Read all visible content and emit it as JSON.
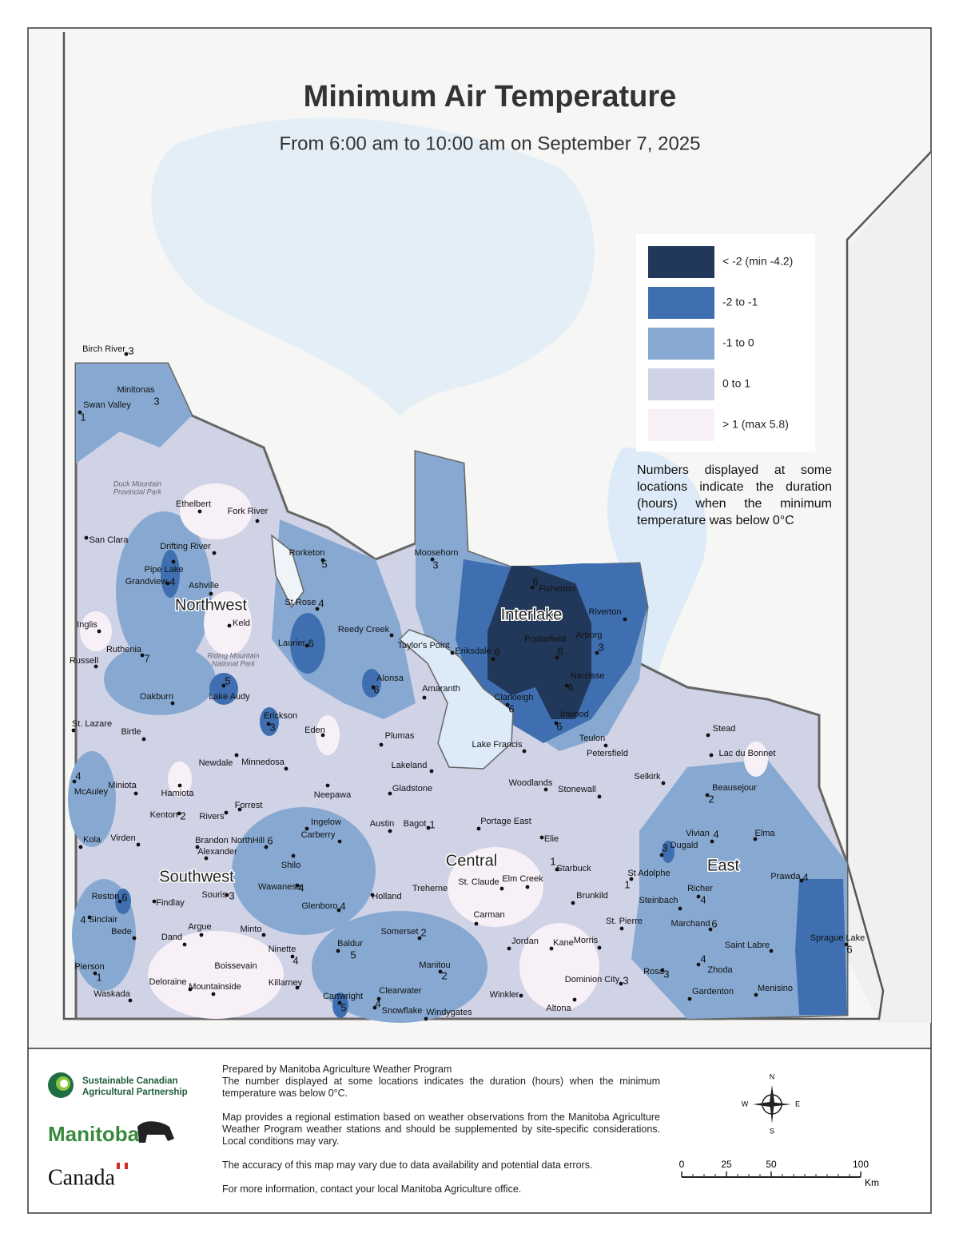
{
  "header": {
    "title": "Minimum Air Temperature",
    "subtitle": "From 6:00 am to 10:00 am on September 7, 2025"
  },
  "legend": {
    "items": [
      {
        "label": "< -2 (min -4.2)",
        "color": "#22385a"
      },
      {
        "label": "-2 to -1",
        "color": "#3f6fb0"
      },
      {
        "label": "-1 to 0",
        "color": "#87a9d1"
      },
      {
        "label": "0 to 1",
        "color": "#d0d2e6"
      },
      {
        "label": "> 1 (max 5.8)",
        "color": "#f7f0f7"
      }
    ],
    "note": "Numbers displayed at some locations indicate the duration (hours) when the minimum temperature was below 0°C"
  },
  "regions": [
    "Northwest",
    "Interlake",
    "Southwest",
    "Central",
    "East"
  ],
  "parks": [
    [
      "Duck Mountain",
      "Provincial Park"
    ],
    [
      "Riding Mountain",
      "National Park"
    ]
  ],
  "stations": [
    {
      "name": "Birch River",
      "hours": 3
    },
    {
      "name": "Minitonas",
      "hours": 3
    },
    {
      "name": "Swan Valley",
      "hours": 1
    },
    {
      "name": "Ethelbert"
    },
    {
      "name": "Fork River"
    },
    {
      "name": "San Clara"
    },
    {
      "name": "Drifting River"
    },
    {
      "name": "Pipe Lake"
    },
    {
      "name": "Grandview",
      "hours": 4
    },
    {
      "name": "Ashville"
    },
    {
      "name": "Rorketon",
      "hours": 5
    },
    {
      "name": "Moosehorn",
      "hours": 3
    },
    {
      "name": "Fisherton",
      "hours": 6
    },
    {
      "name": "Riverton"
    },
    {
      "name": "St Rose",
      "hours": 4
    },
    {
      "name": "Keld"
    },
    {
      "name": "Inglis"
    },
    {
      "name": "Reedy Creek"
    },
    {
      "name": "Taylor's Point"
    },
    {
      "name": "Laurier",
      "hours": 6
    },
    {
      "name": "Eriksdale",
      "hours": 6
    },
    {
      "name": "Poplarfield",
      "hours": 6
    },
    {
      "name": "Arborg",
      "hours": 3
    },
    {
      "name": "Ruthenia",
      "hours": 7
    },
    {
      "name": "Russell"
    },
    {
      "name": "Alonsa",
      "hours": 6
    },
    {
      "name": "Narcisse",
      "hours": 6
    },
    {
      "name": "Lake Audy",
      "hours": 5
    },
    {
      "name": "Amaranth"
    },
    {
      "name": "Clarkleigh",
      "hours": 6
    },
    {
      "name": "Oakburn"
    },
    {
      "name": "Inwood",
      "hours": 6
    },
    {
      "name": "Erickson",
      "hours": 3
    },
    {
      "name": "St. Lazare"
    },
    {
      "name": "Birtle"
    },
    {
      "name": "Eden"
    },
    {
      "name": "Plumas"
    },
    {
      "name": "Stead"
    },
    {
      "name": "Teulon"
    },
    {
      "name": "Lake Francis"
    },
    {
      "name": "Petersfield"
    },
    {
      "name": "Lac du Bonnet"
    },
    {
      "name": "Newdale"
    },
    {
      "name": "Minnedosa"
    },
    {
      "name": "Lakeland"
    },
    {
      "name": "Selkirk"
    },
    {
      "name": "Woodlands"
    },
    {
      "name": "Stonewall"
    },
    {
      "name": "Gladstone"
    },
    {
      "name": "McAuley",
      "hours": 4
    },
    {
      "name": "Miniota"
    },
    {
      "name": "Hamiota"
    },
    {
      "name": "Beausejour",
      "hours": 2
    },
    {
      "name": "Neepawa"
    },
    {
      "name": "Forrest"
    },
    {
      "name": "Kenton",
      "hours": 2
    },
    {
      "name": "Rivers"
    },
    {
      "name": "Austin"
    },
    {
      "name": "Bagot",
      "hours": 1
    },
    {
      "name": "Portage East"
    },
    {
      "name": "Ingelow"
    },
    {
      "name": "Carberry"
    },
    {
      "name": "Elma"
    },
    {
      "name": "Kola"
    },
    {
      "name": "Virden"
    },
    {
      "name": "Brandon"
    },
    {
      "name": "NorthHill",
      "hours": 6
    },
    {
      "name": "Elie"
    },
    {
      "name": "Vivian",
      "hours": 4
    },
    {
      "name": "Dugald",
      "hours": 3
    },
    {
      "name": "Alexander"
    },
    {
      "name": "Shilo"
    },
    {
      "name": "Starbuck",
      "hours": 1
    },
    {
      "name": "St Adolphe",
      "hours": 1
    },
    {
      "name": "Prawda",
      "hours": 4
    },
    {
      "name": "Reston",
      "hours": 6
    },
    {
      "name": "Souris",
      "hours": 3
    },
    {
      "name": "Wawanesa",
      "hours": 4
    },
    {
      "name": "St. Claude"
    },
    {
      "name": "Elm Creek"
    },
    {
      "name": "Treherne"
    },
    {
      "name": "Holland"
    },
    {
      "name": "Brunkild"
    },
    {
      "name": "Richer",
      "hours": 4
    },
    {
      "name": "Findlay"
    },
    {
      "name": "Steinbach"
    },
    {
      "name": "Glenboro",
      "hours": 4
    },
    {
      "name": "Sinclair",
      "hours": 4
    },
    {
      "name": "Carman"
    },
    {
      "name": "St. Pierre"
    },
    {
      "name": "Marchand",
      "hours": 6
    },
    {
      "name": "Bede"
    },
    {
      "name": "Argue"
    },
    {
      "name": "Minto"
    },
    {
      "name": "Somerset",
      "hours": 2
    },
    {
      "name": "Dand"
    },
    {
      "name": "Jordan"
    },
    {
      "name": "Kane"
    },
    {
      "name": "Morris"
    },
    {
      "name": "Saint Labre"
    },
    {
      "name": "Sprague Lake",
      "hours": 6
    },
    {
      "name": "Baldur",
      "hours": 5
    },
    {
      "name": "Ninette",
      "hours": 4
    },
    {
      "name": "Boissevain"
    },
    {
      "name": "Manitou",
      "hours": 2
    },
    {
      "name": "Zhoda",
      "hours": 4
    },
    {
      "name": "Pierson",
      "hours": 1
    },
    {
      "name": "Rosa",
      "hours": 3
    },
    {
      "name": "Dominion City",
      "hours": 3
    },
    {
      "name": "Killarney"
    },
    {
      "name": "Deloraine"
    },
    {
      "name": "Mountainside"
    },
    {
      "name": "Clearwater"
    },
    {
      "name": "Gardenton"
    },
    {
      "name": "Menisino"
    },
    {
      "name": "Waskada"
    },
    {
      "name": "Cartwright",
      "hours": 5
    },
    {
      "name": "Winkler"
    },
    {
      "name": "Snowflake",
      "hours": 4
    },
    {
      "name": "Windygates"
    },
    {
      "name": "Altona"
    }
  ],
  "footer": {
    "partnership": [
      "Sustainable Canadian",
      "Agricultural Partnership"
    ],
    "manitoba": "Manitoba",
    "canada": "Canada",
    "paragraphs": [
      "Prepared by Manitoba Agriculture Weather Program",
      "The number displayed at some locations indicates the duration (hours) when the minimum temperature was below 0°C.",
      "Map provides a regional estimation based on weather observations from the Manitoba Agriculture Weather Program weather stations and should be supplemented by site-specific considerations. Local conditions may vary.",
      "The accuracy of this map may vary due to data availability and potential data errors.",
      "For more information, contact your local Manitoba Agriculture office."
    ],
    "compass": [
      "N",
      "E",
      "S",
      "W"
    ],
    "scale": {
      "ticks": [
        "0",
        "25",
        "50",
        "100"
      ],
      "unit": "Km"
    }
  }
}
